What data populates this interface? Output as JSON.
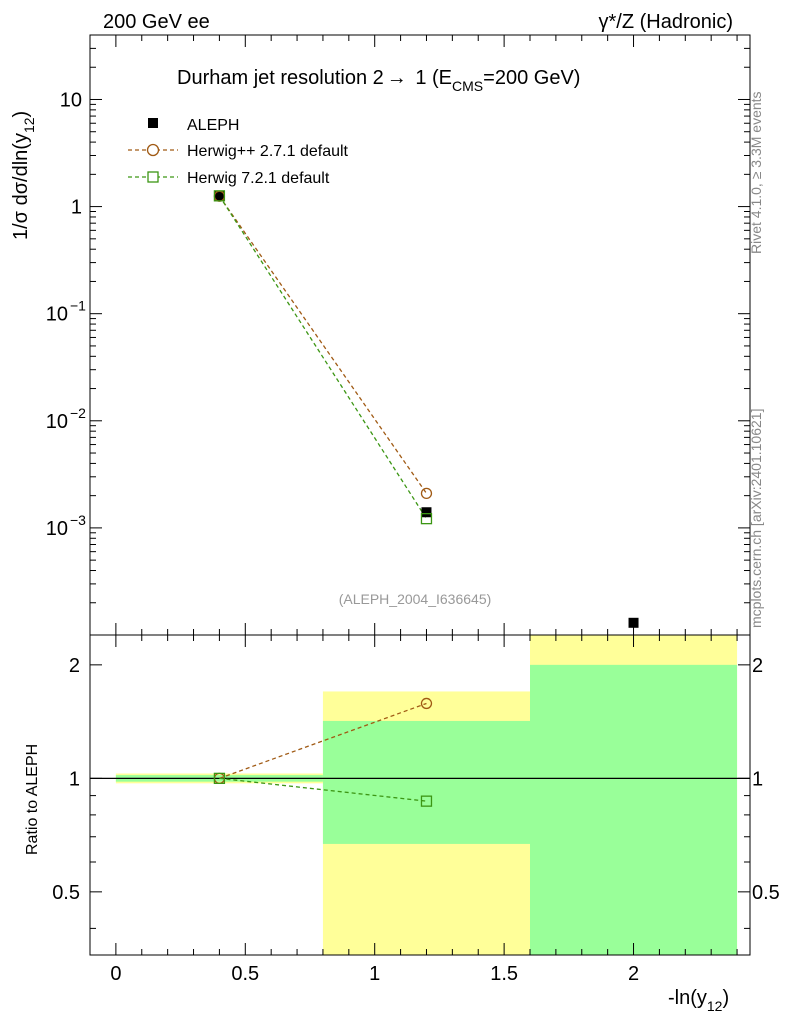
{
  "header": {
    "left": "200 GeV ee",
    "right_prefix": "γ*/Z (Hadronic)"
  },
  "side": {
    "top": "Rivet 4.1.0, ≥ 3.3M events",
    "bottom": "mcplots.cern.ch [arXiv:2401.10621]"
  },
  "chart_data": {
    "type": "scatter",
    "title": {
      "main": "Durham jet resolution 2",
      "arrow": "→",
      "n": " 1 (E",
      "sub": "CMS",
      "tail": "=200 GeV)"
    },
    "xlabel": {
      "main": "-ln(y",
      "sub": "12",
      "close": ")"
    },
    "ylabel": {
      "main": "1/σ  dσ/dln(y",
      "sub": "12",
      "close": ")"
    },
    "ratio_ylabel": "Ratio to ALEPH",
    "watermark": "(ALEPH_2004_I636645)",
    "xlim": [
      -0.1,
      2.45
    ],
    "ylim": [
      0.0001,
      40
    ],
    "ratio_ylim": [
      0.34,
      2.4
    ],
    "x_ticks": [
      {
        "v": 0,
        "label": "0"
      },
      {
        "v": 0.5,
        "label": "0.5"
      },
      {
        "v": 1,
        "label": "1"
      },
      {
        "v": 1.5,
        "label": "1.5"
      },
      {
        "v": 2,
        "label": "2"
      }
    ],
    "y_ticks": [
      {
        "v": 10,
        "base": "10",
        "exp": ""
      },
      {
        "v": 1,
        "base": "1",
        "exp": ""
      },
      {
        "v": 0.1,
        "base": "10",
        "exp": "−1"
      },
      {
        "v": 0.01,
        "base": "10",
        "exp": "−2"
      },
      {
        "v": 0.001,
        "base": "10",
        "exp": "−3"
      }
    ],
    "ratio_ticks": [
      {
        "v": 0.5,
        "label": "0.5"
      },
      {
        "v": 1,
        "label": "1"
      },
      {
        "v": 2,
        "label": "2"
      }
    ],
    "legend": [
      {
        "name": "ALEPH",
        "color": "#000000",
        "marker": "square-filled"
      },
      {
        "name": "Herwig++ 2.7.1 default",
        "color": "#a05a14",
        "marker": "circle-open"
      },
      {
        "name": "Herwig 7.2.1 default",
        "color": "#3c9614",
        "marker": "square-open"
      }
    ],
    "data": {
      "name": "ALEPH",
      "x": [
        0.4,
        1.2,
        2.0
      ],
      "y": [
        1.25,
        0.0014,
        0.00013
      ]
    },
    "series": [
      {
        "name": "Herwig++ 2.7.1 default",
        "color": "#a05a14",
        "marker": "circle",
        "x": [
          0.4,
          1.2
        ],
        "y": [
          1.25,
          0.0021
        ],
        "ratio": [
          1.0,
          1.58
        ]
      },
      {
        "name": "Herwig 7.2.1 default",
        "color": "#3c9614",
        "marker": "square",
        "x": [
          0.4,
          1.2
        ],
        "y": [
          1.26,
          0.00122
        ],
        "ratio": [
          1.0,
          0.87
        ]
      }
    ],
    "bands": [
      {
        "x0": 0.0,
        "x1": 0.8,
        "green": [
          0.98,
          1.02
        ],
        "yellow": [
          0.97,
          1.03
        ]
      },
      {
        "x0": 0.8,
        "x1": 1.6,
        "green": [
          0.67,
          1.42
        ],
        "yellow": [
          0.34,
          1.7
        ]
      },
      {
        "x0": 1.6,
        "x1": 2.4,
        "green": [
          0.34,
          2.0
        ],
        "yellow": [
          0.34,
          2.4
        ]
      }
    ],
    "colors": {
      "yellow": "#ffff99",
      "green": "#99ff99"
    }
  }
}
